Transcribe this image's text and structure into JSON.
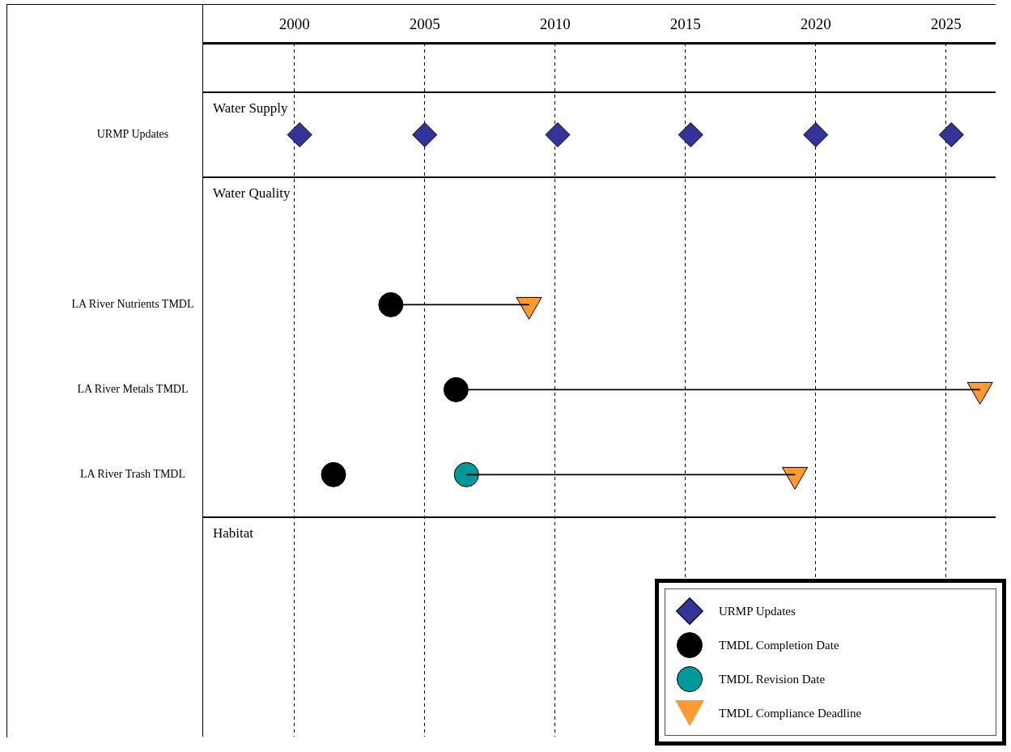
{
  "chart_data": {
    "type": "scatter",
    "orientation": "horizontal",
    "categories": [
      "URMP Updates",
      null,
      "LA River Nutrients TMDL",
      "LA River Metals TMDL",
      "LA River Trash TMDL",
      null,
      null
    ],
    "series": [
      {
        "type": "bar",
        "color": "#000000",
        "base": [
          null,
          null,
          2003.7,
          2006.2,
          2006.6,
          null,
          null
        ],
        "values": [
          null,
          null,
          5.3,
          20.1,
          12.6,
          null,
          null
        ]
      },
      {
        "name": "URMP Updates",
        "color": "#333399",
        "marker": "diamond",
        "values": [
          2000.2,
          null,
          null,
          null,
          null,
          null,
          null
        ]
      },
      {
        "color": "#333399",
        "marker": "diamond",
        "values": [
          2005.0,
          null,
          null,
          null,
          null,
          null,
          null
        ]
      },
      {
        "color": "#333399",
        "marker": "diamond",
        "values": [
          2010.1,
          null,
          null,
          null,
          null,
          null,
          null
        ]
      },
      {
        "color": "#333399",
        "marker": "diamond",
        "values": [
          2015.2,
          null,
          null,
          null,
          null,
          null,
          null
        ]
      },
      {
        "color": "#333399",
        "marker": "diamond",
        "values": [
          2020.0,
          null,
          null,
          null,
          null,
          null,
          null
        ]
      },
      {
        "color": "#333399",
        "marker": "diamond",
        "values": [
          2025.2,
          null,
          null,
          null,
          null,
          null,
          null
        ]
      },
      {
        "name": "TMDL Completion Date",
        "color": "#000000",
        "marker": "circle",
        "values": [
          null,
          null,
          2003.7,
          2006.2,
          2001.5,
          null,
          null
        ]
      },
      {
        "name": "TMDL Revision Date",
        "color": "#009999",
        "marker": "circle",
        "values": [
          null,
          null,
          null,
          null,
          2006.6,
          null,
          null
        ]
      },
      {
        "name": "TMDL Compliance Deadline",
        "color": "#ff9933",
        "marker": "triangle",
        "values": [
          null,
          null,
          2009.0,
          2026.3,
          2019.2,
          null,
          null
        ]
      }
    ],
    "xlim": [
      1996.5,
      2026.9
    ],
    "xticks": [
      2000,
      2005,
      2010,
      2015,
      2020,
      2025
    ],
    "grid": "x",
    "legend": "bottom right",
    "annotations": [
      "Water Supply",
      "Water Quality",
      "Habitat"
    ]
  }
}
